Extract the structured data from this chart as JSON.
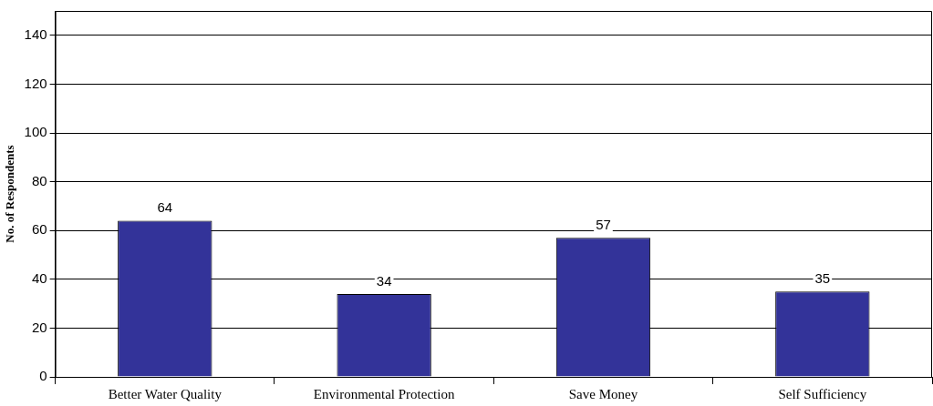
{
  "chart_data": {
    "type": "bar",
    "ylabel": "No. of Respondents",
    "categories": [
      "Better Water Quality",
      "Environmental Protection",
      "Save Money",
      "Self Sufficiency"
    ],
    "values": [
      64,
      34,
      57,
      35
    ],
    "color": "#333399",
    "ylim": [
      0,
      150
    ],
    "yticks": [
      0,
      20,
      40,
      60,
      80,
      100,
      120,
      140
    ],
    "grid": "y",
    "data_labels": true,
    "legend": false
  }
}
